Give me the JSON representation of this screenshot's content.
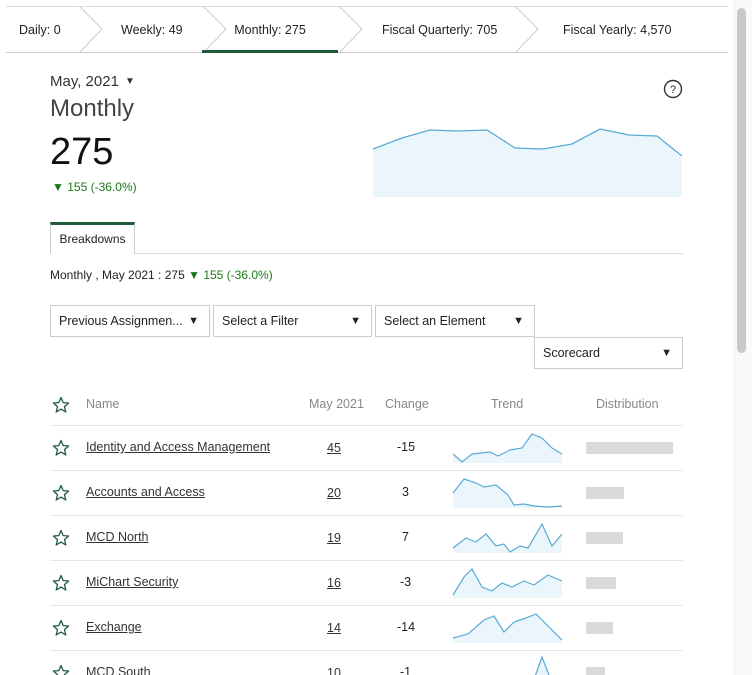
{
  "tabs": [
    {
      "label": "Daily: 0"
    },
    {
      "label": "Weekly: 49"
    },
    {
      "label": "Monthly: 275"
    },
    {
      "label": "Fiscal Quarterly: 705"
    },
    {
      "label": "Fiscal Yearly: 4,570"
    }
  ],
  "active_tab": "Monthly: 275",
  "header": {
    "date": "May, 2021",
    "period": "Monthly",
    "value": "275",
    "delta": "155 (-36.0%)"
  },
  "subtab": {
    "label": "Breakdowns"
  },
  "summary": {
    "prefix": "Monthly , May 2021 : 275",
    "delta": "155 (-36.0%)"
  },
  "filters": {
    "assignment": "Previous Assignmen...",
    "filter": "Select a Filter",
    "element": "Select an Element",
    "view": "Scorecard"
  },
  "table": {
    "headers": {
      "name": "Name",
      "period": "May 2021",
      "change": "Change",
      "trend": "Trend",
      "distribution": "Distribution"
    },
    "rows": [
      {
        "name": "Identity and Access Management",
        "value": "45",
        "change": "-15",
        "dist": 1.0
      },
      {
        "name": "Accounts and Access",
        "value": "20",
        "change": "3",
        "dist": 0.44
      },
      {
        "name": "MCD North",
        "value": "19",
        "change": "7",
        "dist": 0.42
      },
      {
        "name": "MiChart Security",
        "value": "16",
        "change": "-3",
        "dist": 0.35
      },
      {
        "name": "Exchange",
        "value": "14",
        "change": "-14",
        "dist": 0.31
      },
      {
        "name": "MCD South",
        "value": "10",
        "change": "-1",
        "dist": 0.22
      }
    ]
  },
  "colors": {
    "accent": "#1f5a3a",
    "positive": "#1a7a1a",
    "spark": "#5aaad6",
    "spark_fill": "#eaf5fc"
  }
}
